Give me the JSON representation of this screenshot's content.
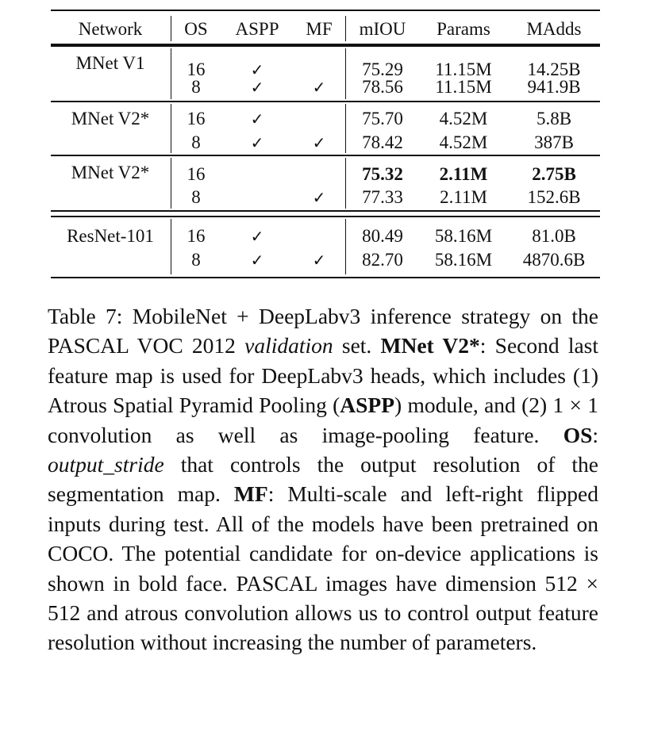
{
  "table": {
    "headers": {
      "network": "Network",
      "os": "OS",
      "aspp": "ASPP",
      "mf": "MF",
      "miou": "mIOU",
      "params": "Params",
      "madds": "MAdds"
    },
    "check_glyph": "✓",
    "groups": [
      {
        "network": "MNet V1",
        "rows": [
          {
            "os": "16",
            "aspp": true,
            "mf": false,
            "miou": "75.29",
            "params": "11.15M",
            "madds": "14.25B",
            "bold": false
          },
          {
            "os": "8",
            "aspp": true,
            "mf": true,
            "miou": "78.56",
            "params": "11.15M",
            "madds": "941.9B",
            "bold": false
          }
        ]
      },
      {
        "network": "MNet V2*",
        "rows": [
          {
            "os": "16",
            "aspp": true,
            "mf": false,
            "miou": "75.70",
            "params": "4.52M",
            "madds": "5.8B",
            "bold": false
          },
          {
            "os": "8",
            "aspp": true,
            "mf": true,
            "miou": "78.42",
            "params": "4.52M",
            "madds": "387B",
            "bold": false
          }
        ]
      },
      {
        "network": "MNet V2*",
        "rows": [
          {
            "os": "16",
            "aspp": false,
            "mf": false,
            "miou": "75.32",
            "params": "2.11M",
            "madds": "2.75B",
            "bold": true
          },
          {
            "os": "8",
            "aspp": false,
            "mf": true,
            "miou": "77.33",
            "params": "2.11M",
            "madds": "152.6B",
            "bold": false
          }
        ]
      },
      {
        "network": "ResNet-101",
        "rows": [
          {
            "os": "16",
            "aspp": true,
            "mf": false,
            "miou": "80.49",
            "params": "58.16M",
            "madds": "81.0B",
            "bold": false
          },
          {
            "os": "8",
            "aspp": true,
            "mf": true,
            "miou": "82.70",
            "params": "58.16M",
            "madds": "4870.6B",
            "bold": false
          }
        ]
      }
    ]
  },
  "caption": {
    "label": "Table 7:",
    "s1": "MobileNet + DeepLabv3 inference strategy on the PASCAL VOC 2012",
    "s1_italic": "validation",
    "s1_end": "set.",
    "mnet_term": "MNet V2*",
    "mnet_desc": ": Second last feature map is used for DeepLabv3 heads, which includes (1) Atrous Spatial Pyramid Pool­ing (",
    "aspp_term": "ASPP",
    "aspp_desc": ") module, and (2) 1 × 1 convolution as well as image-pooling feature.",
    "os_term": "OS",
    "os_sep": ":",
    "os_italic": "output_stride",
    "os_desc": "that con­trols the output resolution of the segmentation map.",
    "mf_term": "MF",
    "mf_desc": ": Multi-scale and left-right flipped inputs during test. All of the models have been pretrained on COCO. The po­tential candidate for on-device applications is shown in bold face. PASCAL images have dimension 512 × 512 and atrous convolution allows us to control output fea­ture resolution without increasing the number of param­eters."
  }
}
